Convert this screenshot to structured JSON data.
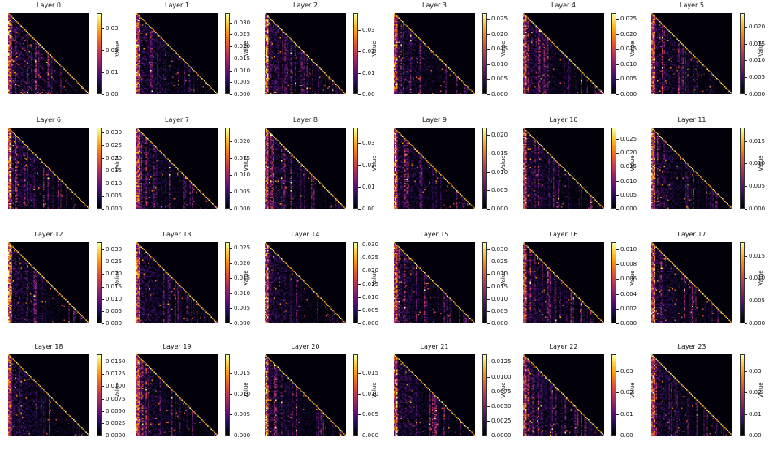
{
  "chart_data": [
    {
      "type": "heatmap",
      "title": "Layer 0",
      "colorbar_label": "Value",
      "colormap": "inferno",
      "vmin": 0,
      "vmax": 0.037,
      "colorbar_ticks": [
        "0.00",
        "0.01",
        "0.02",
        "0.03"
      ]
    },
    {
      "type": "heatmap",
      "title": "Layer 1",
      "colorbar_label": "Value",
      "colormap": "inferno",
      "vmin": 0,
      "vmax": 0.034,
      "colorbar_ticks": [
        "0.000",
        "0.005",
        "0.010",
        "0.015",
        "0.020",
        "0.025",
        "0.030"
      ]
    },
    {
      "type": "heatmap",
      "title": "Layer 2",
      "colorbar_label": "Value",
      "colormap": "inferno",
      "vmin": 0,
      "vmax": 0.038,
      "colorbar_ticks": [
        "0.00",
        "0.01",
        "0.02",
        "0.03"
      ]
    },
    {
      "type": "heatmap",
      "title": "Layer 3",
      "colorbar_label": "Value",
      "colormap": "inferno",
      "vmin": 0,
      "vmax": 0.027,
      "colorbar_ticks": [
        "0.000",
        "0.005",
        "0.010",
        "0.015",
        "0.020",
        "0.025"
      ]
    },
    {
      "type": "heatmap",
      "title": "Layer 4",
      "colorbar_label": "Value",
      "colormap": "inferno",
      "vmin": 0,
      "vmax": 0.027,
      "colorbar_ticks": [
        "0.000",
        "0.005",
        "0.010",
        "0.015",
        "0.020",
        "0.025"
      ]
    },
    {
      "type": "heatmap",
      "title": "Layer 5",
      "colorbar_label": "Value",
      "colormap": "inferno",
      "vmin": 0,
      "vmax": 0.024,
      "colorbar_ticks": [
        "0.000",
        "0.005",
        "0.010",
        "0.015",
        "0.020"
      ]
    },
    {
      "type": "heatmap",
      "title": "Layer 6",
      "colorbar_label": "Value",
      "colormap": "inferno",
      "vmin": 0,
      "vmax": 0.032,
      "colorbar_ticks": [
        "0.000",
        "0.005",
        "0.010",
        "0.015",
        "0.020",
        "0.025",
        "0.030"
      ]
    },
    {
      "type": "heatmap",
      "title": "Layer 7",
      "colorbar_label": "Value",
      "colormap": "inferno",
      "vmin": 0,
      "vmax": 0.024,
      "colorbar_ticks": [
        "0.000",
        "0.005",
        "0.010",
        "0.015",
        "0.020"
      ]
    },
    {
      "type": "heatmap",
      "title": "Layer 8",
      "colorbar_label": "Value",
      "colormap": "inferno",
      "vmin": 0,
      "vmax": 0.037,
      "colorbar_ticks": [
        "0.00",
        "0.01",
        "0.02",
        "0.03"
      ]
    },
    {
      "type": "heatmap",
      "title": "Layer 9",
      "colorbar_label": "Value",
      "colormap": "inferno",
      "vmin": 0,
      "vmax": 0.022,
      "colorbar_ticks": [
        "0.000",
        "0.005",
        "0.010",
        "0.015",
        "0.020"
      ]
    },
    {
      "type": "heatmap",
      "title": "Layer 10",
      "colorbar_label": "Value",
      "colormap": "inferno",
      "vmin": 0,
      "vmax": 0.029,
      "colorbar_ticks": [
        "0.000",
        "0.005",
        "0.010",
        "0.015",
        "0.020",
        "0.025"
      ]
    },
    {
      "type": "heatmap",
      "title": "Layer 11",
      "colorbar_label": "Value",
      "colormap": "inferno",
      "vmin": 0,
      "vmax": 0.018,
      "colorbar_ticks": [
        "0.000",
        "0.005",
        "0.010",
        "0.015"
      ]
    },
    {
      "type": "heatmap",
      "title": "Layer 12",
      "colorbar_label": "Value",
      "colormap": "inferno",
      "vmin": 0,
      "vmax": 0.033,
      "colorbar_ticks": [
        "0.000",
        "0.005",
        "0.010",
        "0.015",
        "0.020",
        "0.025",
        "0.030"
      ]
    },
    {
      "type": "heatmap",
      "title": "Layer 13",
      "colorbar_label": "Value",
      "colormap": "inferno",
      "vmin": 0,
      "vmax": 0.027,
      "colorbar_ticks": [
        "0.000",
        "0.005",
        "0.010",
        "0.015",
        "0.020",
        "0.025"
      ]
    },
    {
      "type": "heatmap",
      "title": "Layer 14",
      "colorbar_label": "Value",
      "colormap": "inferno",
      "vmin": 0,
      "vmax": 0.031,
      "colorbar_ticks": [
        "0.000",
        "0.005",
        "0.010",
        "0.015",
        "0.020",
        "0.025",
        "0.030"
      ]
    },
    {
      "type": "heatmap",
      "title": "Layer 15",
      "colorbar_label": "Value",
      "colormap": "inferno",
      "vmin": 0,
      "vmax": 0.033,
      "colorbar_ticks": [
        "0.000",
        "0.005",
        "0.010",
        "0.015",
        "0.020",
        "0.025",
        "0.030"
      ]
    },
    {
      "type": "heatmap",
      "title": "Layer 16",
      "colorbar_label": "Value",
      "colormap": "inferno",
      "vmin": 0,
      "vmax": 0.011,
      "colorbar_ticks": [
        "0.000",
        "0.002",
        "0.004",
        "0.006",
        "0.008",
        "0.010"
      ]
    },
    {
      "type": "heatmap",
      "title": "Layer 17",
      "colorbar_label": "Value",
      "colormap": "inferno",
      "vmin": 0,
      "vmax": 0.018,
      "colorbar_ticks": [
        "0.000",
        "0.005",
        "0.010",
        "0.015"
      ]
    },
    {
      "type": "heatmap",
      "title": "Layer 18",
      "colorbar_label": "Value",
      "colormap": "inferno",
      "vmin": 0,
      "vmax": 0.0165,
      "colorbar_ticks": [
        "0.0000",
        "0.0025",
        "0.0050",
        "0.0075",
        "0.0100",
        "0.0125",
        "0.0150"
      ]
    },
    {
      "type": "heatmap",
      "title": "Layer 19",
      "colorbar_label": "Value",
      "colormap": "inferno",
      "vmin": 0,
      "vmax": 0.0195,
      "colorbar_ticks": [
        "0.000",
        "0.005",
        "0.010",
        "0.015"
      ]
    },
    {
      "type": "heatmap",
      "title": "Layer 20",
      "colorbar_label": "Value",
      "colormap": "inferno",
      "vmin": 0,
      "vmax": 0.0195,
      "colorbar_ticks": [
        "0.000",
        "0.005",
        "0.010",
        "0.015"
      ]
    },
    {
      "type": "heatmap",
      "title": "Layer 21",
      "colorbar_label": "Value",
      "colormap": "inferno",
      "vmin": 0,
      "vmax": 0.0138,
      "colorbar_ticks": [
        "0.0000",
        "0.0025",
        "0.0050",
        "0.0075",
        "0.0100",
        "0.0125"
      ]
    },
    {
      "type": "heatmap",
      "title": "Layer 22",
      "colorbar_label": "Value",
      "colormap": "inferno",
      "vmin": 0,
      "vmax": 0.038,
      "colorbar_ticks": [
        "0.00",
        "0.01",
        "0.02",
        "0.03"
      ]
    },
    {
      "type": "heatmap",
      "title": "Layer 23",
      "colorbar_label": "Value",
      "colormap": "inferno",
      "vmin": 0,
      "vmax": 0.038,
      "colorbar_ticks": [
        "0.00",
        "0.01",
        "0.02",
        "0.03"
      ]
    }
  ]
}
